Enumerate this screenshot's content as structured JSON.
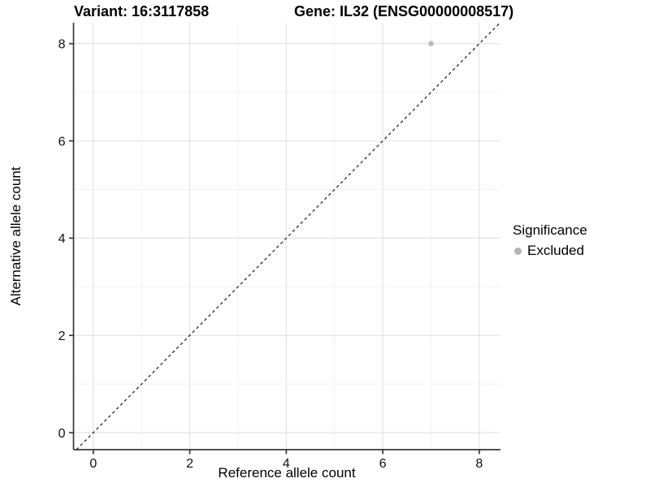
{
  "chart_data": {
    "type": "scatter",
    "titles": {
      "left": "Variant: 16:3117858",
      "right": "Gene: IL32 (ENSG00000008517)"
    },
    "xlabel": "Reference allele count",
    "ylabel": "Alternative allele count",
    "xticks": [
      0,
      2,
      4,
      6,
      8
    ],
    "yticks": [
      0,
      2,
      4,
      6,
      8
    ],
    "minor_xticks": [
      1,
      3,
      5,
      7
    ],
    "minor_yticks": [
      1,
      3,
      5,
      7
    ],
    "xlim": [
      -0.41,
      8.44
    ],
    "ylim": [
      -0.35,
      8.43
    ],
    "grid": true,
    "legend_position": "right",
    "legend": {
      "title": "Significance",
      "items": [
        {
          "label": "Excluded",
          "color": "#b3b3b3"
        }
      ]
    },
    "series": [
      {
        "name": "Excluded",
        "color": "#bdbdbd",
        "points": [
          {
            "x": 7,
            "y": 8
          }
        ]
      }
    ],
    "identity_line": {
      "style": "dashed",
      "color": "#000000"
    }
  },
  "colors": {
    "background": "#ffffff",
    "grid_major": "#e4e4e4",
    "grid_minor": "#f1f1f1",
    "axis": "#383838",
    "tick_label": "#111111"
  }
}
